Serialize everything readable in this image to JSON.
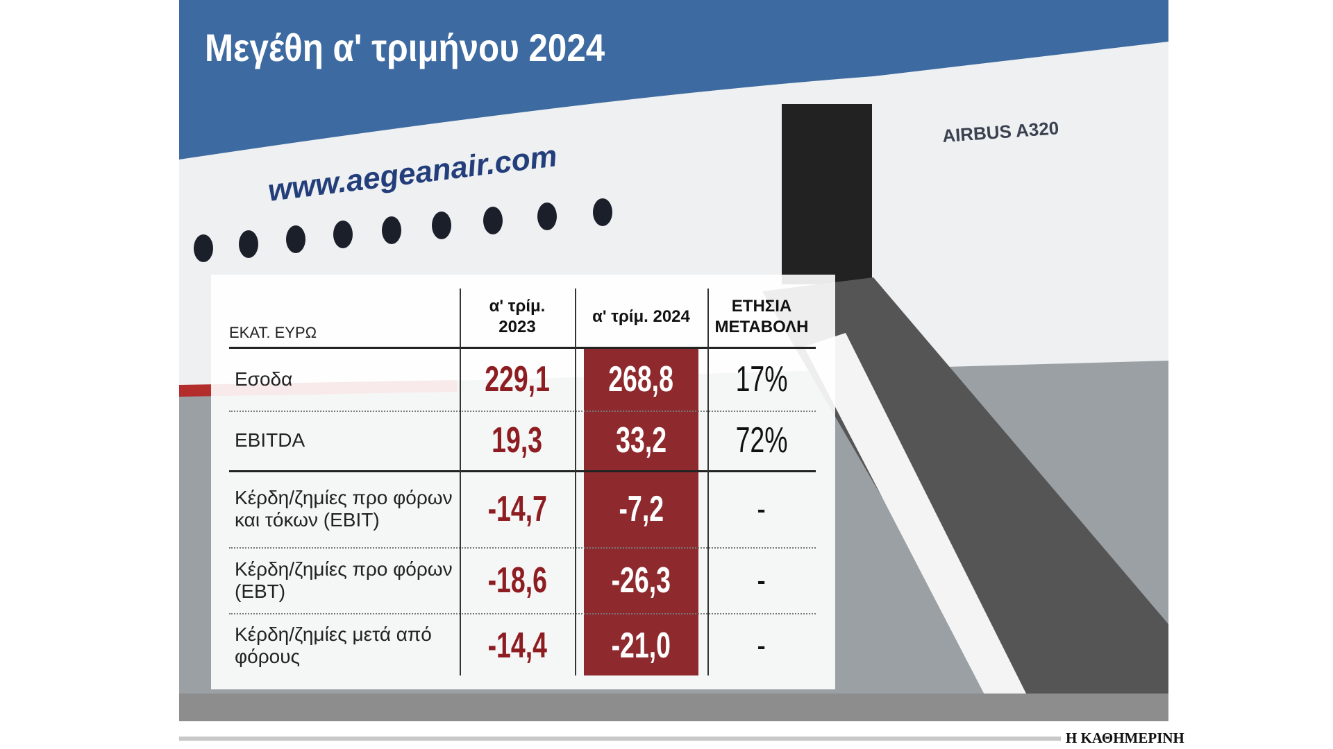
{
  "header": {
    "title": "Μεγέθη α' τριμήνου 2024"
  },
  "table": {
    "unit": "ΕΚΑΤ. ΕΥΡΩ",
    "columns": [
      "α' τρίμ. 2023",
      "α' τρίμ. 2024",
      "ΕΤΗΣΙΑ ΜΕΤΑΒΟΛΗ"
    ],
    "rows": [
      [
        "Εσοδα",
        "229,1",
        "268,8",
        "17%"
      ],
      [
        "EBITDA",
        "19,3",
        "33,2",
        "72%"
      ],
      [
        "Κέρδη/ζημίες προ φόρων και τόκων (EBIT)",
        "-14,7",
        "-7,2",
        "-"
      ],
      [
        "Κέρδη/ζημίες προ φόρων (EBT)",
        "-18,6",
        "-26,3",
        "-"
      ],
      [
        "Κέρδη/ζημίες μετά από φόρους",
        "-14,4",
        "-21,0",
        "-"
      ]
    ]
  },
  "photo": {
    "text": "www.aegeanair.com",
    "model": "AIRBUS A320"
  },
  "footer": {
    "source": "Η ΚΑΘΗΜΕΡΙΝΗ"
  }
}
